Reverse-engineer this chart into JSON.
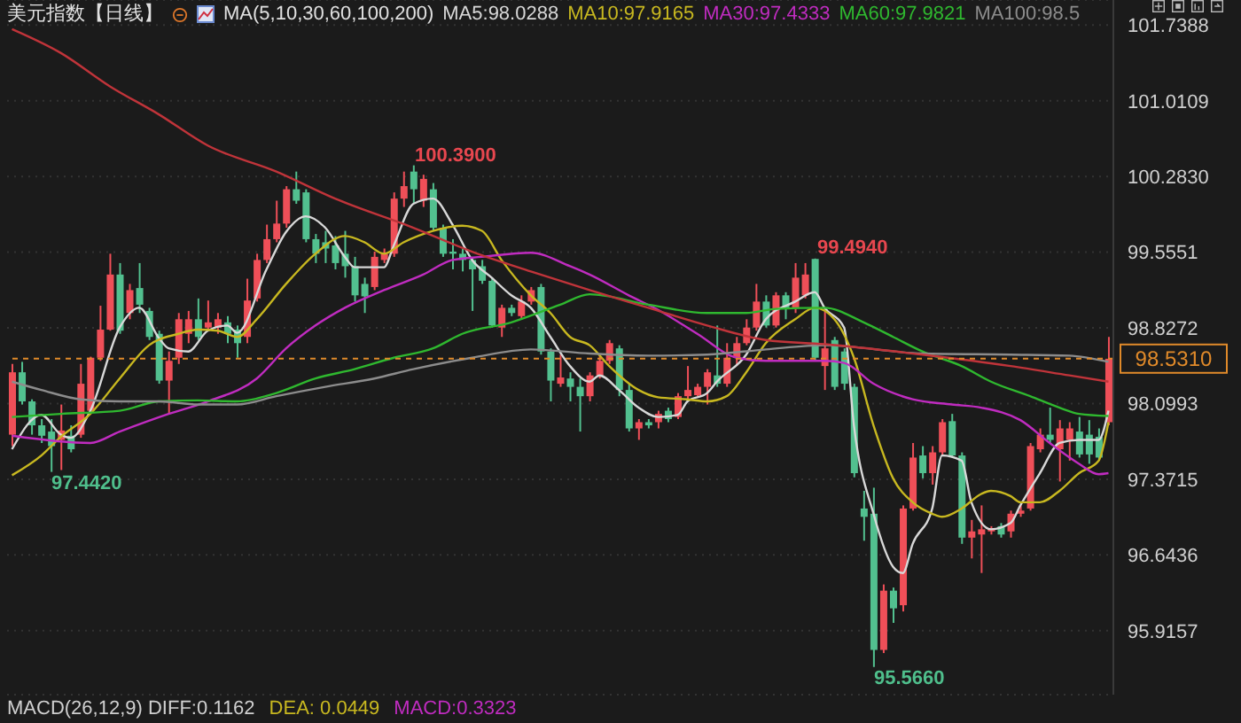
{
  "chart_data": {
    "type": "candlestick",
    "title": "美元指数【日线】",
    "legend_title": "MA(5,10,30,60,100,200)",
    "legend": "top",
    "grid": "y",
    "categories": [
      null,
      null,
      null,
      null,
      null,
      null,
      null,
      null,
      null,
      null,
      null,
      null,
      null,
      null,
      null,
      null,
      null,
      null,
      null,
      null,
      null,
      null,
      null,
      null,
      null,
      null,
      null,
      null,
      null,
      null,
      null,
      null,
      null,
      null,
      null,
      null,
      null,
      null,
      null,
      null,
      null,
      null,
      null,
      null,
      null,
      null,
      null,
      null,
      null,
      null,
      null,
      null,
      null,
      null,
      null,
      null,
      null,
      null,
      null,
      null,
      null,
      null,
      null,
      null,
      null,
      null,
      null,
      null,
      null,
      null,
      null,
      null,
      null,
      null,
      null,
      null,
      null,
      null,
      null,
      null,
      null,
      null,
      null,
      null,
      null,
      null,
      null,
      null,
      null,
      null,
      null,
      null,
      null,
      null,
      null,
      null,
      null,
      null,
      null,
      null,
      null,
      null,
      null,
      null,
      null,
      null,
      null,
      null,
      null,
      null,
      null,
      null,
      null
    ],
    "ohlc": [
      [
        97.8,
        98.48,
        97.69,
        98.4
      ],
      [
        98.4,
        98.5,
        98.09,
        98.12
      ],
      [
        98.12,
        98.14,
        97.8,
        97.89
      ],
      [
        97.89,
        97.95,
        97.72,
        97.79
      ],
      [
        97.83,
        97.95,
        97.442,
        97.69
      ],
      [
        97.75,
        98.09,
        97.46,
        97.84
      ],
      [
        97.79,
        97.89,
        97.63,
        97.66
      ],
      [
        97.8,
        98.48,
        97.77,
        98.29
      ],
      [
        98.03,
        98.55,
        98.0,
        98.54
      ],
      [
        98.54,
        99.04,
        98.51,
        98.81
      ],
      [
        98.81,
        99.54,
        98.8,
        99.34
      ],
      [
        99.34,
        99.45,
        98.77,
        98.8
      ],
      [
        98.97,
        99.25,
        98.91,
        99.19
      ],
      [
        99.21,
        99.45,
        98.97,
        99.05
      ],
      [
        98.99,
        99.02,
        98.71,
        98.74
      ],
      [
        98.77,
        98.8,
        98.29,
        98.32
      ],
      [
        98.32,
        98.6,
        98.0,
        98.51
      ],
      [
        98.54,
        98.97,
        98.48,
        98.91
      ],
      [
        98.77,
        98.99,
        98.68,
        98.91
      ],
      [
        98.91,
        99.11,
        98.71,
        98.74
      ],
      [
        98.83,
        99.09,
        98.8,
        98.88
      ],
      [
        98.83,
        98.97,
        98.77,
        98.91
      ],
      [
        98.88,
        98.94,
        98.68,
        98.77
      ],
      [
        98.81,
        98.85,
        98.54,
        98.68
      ],
      [
        98.74,
        99.3,
        98.68,
        99.09
      ],
      [
        99.11,
        99.54,
        99.08,
        99.48
      ],
      [
        99.48,
        99.82,
        99.45,
        99.68
      ],
      [
        99.68,
        100.05,
        99.65,
        99.83
      ],
      [
        99.83,
        100.19,
        99.79,
        100.16
      ],
      [
        100.16,
        100.33,
        100.02,
        100.05
      ],
      [
        100.13,
        100.16,
        99.65,
        99.68
      ],
      [
        99.68,
        99.73,
        99.45,
        99.54
      ],
      [
        99.65,
        99.76,
        99.45,
        99.59
      ],
      [
        99.62,
        99.71,
        99.39,
        99.45
      ],
      [
        99.54,
        99.76,
        99.31,
        99.42
      ],
      [
        99.42,
        99.51,
        99.08,
        99.14
      ],
      [
        99.25,
        99.31,
        98.97,
        99.13
      ],
      [
        99.22,
        99.56,
        99.19,
        99.51
      ],
      [
        99.48,
        99.59,
        99.45,
        99.54
      ],
      [
        99.54,
        100.13,
        99.51,
        100.07
      ],
      [
        100.07,
        100.33,
        99.99,
        100.19
      ],
      [
        100.33,
        100.39,
        100.02,
        100.16
      ],
      [
        100.05,
        100.3,
        99.99,
        100.26
      ],
      [
        100.16,
        100.22,
        99.76,
        99.79
      ],
      [
        99.79,
        99.82,
        99.51,
        99.54
      ],
      [
        99.56,
        99.68,
        99.39,
        99.54
      ],
      [
        99.54,
        99.59,
        99.37,
        99.48
      ],
      [
        99.48,
        99.51,
        98.99,
        99.39
      ],
      [
        99.42,
        99.48,
        99.25,
        99.28
      ],
      [
        99.28,
        99.31,
        98.83,
        98.85
      ],
      [
        98.83,
        99.05,
        98.74,
        99.02
      ],
      [
        99.02,
        99.05,
        98.94,
        98.97
      ],
      [
        98.94,
        99.14,
        98.91,
        99.08
      ],
      [
        99.08,
        99.22,
        99.05,
        99.19
      ],
      [
        99.22,
        99.25,
        98.57,
        98.6
      ],
      [
        98.6,
        98.63,
        98.12,
        98.32
      ],
      [
        98.29,
        98.57,
        98.26,
        98.35
      ],
      [
        98.34,
        98.4,
        98.12,
        98.26
      ],
      [
        98.26,
        98.34,
        97.83,
        98.17
      ],
      [
        98.17,
        98.4,
        98.12,
        98.37
      ],
      [
        98.37,
        98.57,
        98.34,
        98.51
      ],
      [
        98.51,
        98.71,
        98.48,
        98.68
      ],
      [
        98.63,
        98.66,
        98.17,
        98.23
      ],
      [
        98.23,
        98.29,
        97.83,
        97.86
      ],
      [
        97.86,
        97.95,
        97.75,
        97.92
      ],
      [
        97.92,
        97.95,
        97.86,
        97.89
      ],
      [
        97.92,
        98.03,
        97.86,
        98.0
      ],
      [
        98.03,
        98.06,
        97.92,
        97.95
      ],
      [
        97.97,
        98.2,
        97.95,
        98.17
      ],
      [
        98.17,
        98.46,
        98.14,
        98.23
      ],
      [
        98.18,
        98.29,
        98.17,
        98.26
      ],
      [
        98.26,
        98.43,
        98.09,
        98.4
      ],
      [
        98.37,
        98.85,
        98.26,
        98.29
      ],
      [
        98.29,
        98.68,
        98.26,
        98.54
      ],
      [
        98.54,
        98.74,
        98.46,
        98.68
      ],
      [
        98.68,
        98.91,
        98.66,
        98.83
      ],
      [
        98.83,
        99.25,
        98.8,
        99.08
      ],
      [
        99.08,
        99.14,
        98.83,
        98.85
      ],
      [
        98.85,
        99.17,
        98.83,
        99.14
      ],
      [
        99.14,
        99.17,
        98.91,
        99.02
      ],
      [
        99.02,
        99.45,
        98.97,
        99.31
      ],
      [
        99.14,
        99.45,
        99.11,
        99.34
      ],
      [
        99.49,
        99.494,
        98.51,
        98.54
      ],
      [
        98.46,
        99.02,
        98.23,
        98.63
      ],
      [
        98.71,
        98.74,
        98.23,
        98.26
      ],
      [
        98.6,
        98.63,
        98.23,
        98.29
      ],
      [
        98.26,
        98.29,
        97.39,
        97.43
      ],
      [
        97.09,
        97.26,
        96.78,
        97.01
      ],
      [
        97.04,
        97.29,
        95.566,
        95.73
      ],
      [
        95.73,
        96.36,
        95.7,
        96.3
      ],
      [
        96.3,
        96.33,
        95.99,
        96.13
      ],
      [
        96.16,
        97.12,
        96.1,
        97.09
      ],
      [
        97.09,
        97.72,
        97.07,
        97.58
      ],
      [
        97.6,
        97.69,
        97.38,
        97.43
      ],
      [
        97.43,
        97.69,
        97.32,
        97.63
      ],
      [
        97.63,
        97.95,
        97.6,
        97.92
      ],
      [
        97.93,
        98.0,
        97.58,
        97.6
      ],
      [
        97.6,
        97.63,
        96.75,
        96.81
      ],
      [
        96.81,
        96.98,
        96.61,
        96.87
      ],
      [
        96.84,
        97.12,
        96.47,
        96.89
      ],
      [
        96.87,
        96.92,
        96.84,
        96.9
      ],
      [
        96.92,
        96.95,
        96.81,
        96.84
      ],
      [
        96.87,
        97.07,
        96.81,
        97.04
      ],
      [
        97.04,
        97.12,
        97.01,
        97.07
      ],
      [
        97.09,
        97.72,
        97.07,
        97.69
      ],
      [
        97.66,
        97.86,
        97.63,
        97.8
      ],
      [
        97.8,
        98.06,
        97.72,
        97.75
      ],
      [
        97.66,
        97.94,
        97.35,
        97.86
      ],
      [
        97.75,
        97.92,
        97.55,
        97.86
      ],
      [
        97.83,
        97.97,
        97.58,
        97.61
      ],
      [
        97.8,
        97.94,
        97.52,
        97.61
      ],
      [
        97.78,
        97.86,
        97.55,
        97.58
      ],
      [
        97.92,
        98.74,
        97.89,
        98.53
      ]
    ],
    "colors": [
      "#ef4f58",
      "#52c08f",
      "#52c08f",
      "#52c08f",
      "#52c08f",
      "#ef4f58",
      "#52c08f",
      "#ef4f58",
      "#ef4f58",
      "#ef4f58",
      "#ef4f58",
      "#52c08f",
      "#ef4f58",
      "#52c08f",
      "#52c08f",
      "#52c08f",
      "#ef4f58",
      "#ef4f58",
      "#ef4f58",
      "#52c08f",
      "#ef4f58",
      "#ef4f58",
      "#52c08f",
      "#52c08f",
      "#ef4f58",
      "#ef4f58",
      "#ef4f58",
      "#ef4f58",
      "#ef4f58",
      "#52c08f",
      "#52c08f",
      "#52c08f",
      "#52c08f",
      "#52c08f",
      "#52c08f",
      "#52c08f",
      "#52c08f",
      "#ef4f58",
      "#ef4f58",
      "#ef4f58",
      "#ef4f58",
      "#52c08f",
      "#ef4f58",
      "#52c08f",
      "#52c08f",
      "#52c08f",
      "#52c08f",
      "#52c08f",
      "#52c08f",
      "#52c08f",
      "#ef4f58",
      "#52c08f",
      "#ef4f58",
      "#ef4f58",
      "#52c08f",
      "#52c08f",
      "#ef4f58",
      "#52c08f",
      "#52c08f",
      "#ef4f58",
      "#ef4f58",
      "#ef4f58",
      "#52c08f",
      "#52c08f",
      "#ef4f58",
      "#52c08f",
      "#ef4f58",
      "#52c08f",
      "#ef4f58",
      "#ef4f58",
      "#ef4f58",
      "#ef4f58",
      "#52c08f",
      "#ef4f58",
      "#ef4f58",
      "#ef4f58",
      "#ef4f58",
      "#52c08f",
      "#ef4f58",
      "#52c08f",
      "#ef4f58",
      "#ef4f58",
      "#52c08f",
      "#ef4f58",
      "#52c08f",
      "#52c08f",
      "#52c08f",
      "#52c08f",
      "#52c08f",
      "#ef4f58",
      "#52c08f",
      "#ef4f58",
      "#ef4f58",
      "#52c08f",
      "#ef4f58",
      "#ef4f58",
      "#52c08f",
      "#52c08f",
      "#ef4f58",
      "#ef4f58",
      "#ef4f58",
      "#52c08f",
      "#ef4f58",
      "#ef4f58",
      "#ef4f58",
      "#ef4f58",
      "#52c08f",
      "#ef4f58",
      "#ef4f58",
      "#52c08f",
      "#52c08f",
      "#52c08f",
      "#ef4f58"
    ],
    "series": [
      {
        "name": "MA5:98.0288",
        "type": "line",
        "color": "#d8d8d8",
        "values": [
          97.66,
          null,
          null,
          97.99,
          null,
          97.8,
          97.77,
          null,
          98.03,
          null,
          null,
          98.83,
          null,
          99.02,
          null,
          98.73,
          98.63,
          null,
          98.6,
          null,
          98.8,
          null,
          98.85,
          98.78,
          null,
          null,
          99.39,
          null,
          99.75,
          null,
          99.9,
          null,
          99.79,
          null,
          99.51,
          99.41,
          null,
          null,
          99.41,
          99.62,
          null,
          100.02,
          null,
          100.07,
          null,
          99.82,
          null,
          99.48,
          null,
          99.31,
          null,
          99.14,
          null,
          99.02,
          null,
          98.74,
          null,
          98.46,
          null,
          98.31,
          98.37,
          null,
          98.23,
          null,
          98.06,
          null,
          97.97,
          null,
          97.99,
          98.12,
          null,
          98.2,
          98.31,
          null,
          null,
          98.57,
          null,
          98.91,
          null,
          null,
          99.08,
          null,
          99.17,
          99.02,
          null,
          98.83,
          97.89,
          null,
          97.04,
          null,
          96.53,
          96.47,
          96.75,
          null,
          97.09,
          97.6,
          null,
          97.55,
          97.15,
          null,
          96.89,
          null,
          96.95,
          97.12,
          null,
          97.43,
          null,
          97.72,
          null,
          97.75,
          null,
          97.75,
          98.03
        ]
      },
      {
        "name": "MA10:97.9165",
        "type": "line",
        "color": "#c8b820",
        "values": [
          97.41,
          null,
          null,
          97.6,
          null,
          97.78,
          null,
          null,
          98.0,
          null,
          null,
          98.34,
          null,
          null,
          98.66,
          null,
          null,
          98.77,
          null,
          98.81,
          null,
          98.8,
          null,
          98.74,
          null,
          98.91,
          null,
          null,
          99.25,
          null,
          null,
          99.54,
          null,
          null,
          99.71,
          null,
          99.65,
          null,
          99.54,
          null,
          99.65,
          null,
          null,
          99.76,
          null,
          null,
          99.81,
          null,
          99.76,
          null,
          99.48,
          null,
          null,
          99.14,
          null,
          98.97,
          null,
          98.74,
          null,
          98.66,
          null,
          98.46,
          null,
          null,
          98.23,
          null,
          98.16,
          null,
          null,
          98.14,
          null,
          98.12,
          null,
          98.17,
          null,
          98.4,
          null,
          98.68,
          null,
          null,
          98.91,
          null,
          99.02,
          null,
          98.91,
          null,
          98.54,
          null,
          97.89,
          null,
          97.38,
          null,
          97.15,
          null,
          97.04,
          97.01,
          null,
          97.09,
          null,
          97.23,
          97.26,
          null,
          97.21,
          97.15,
          null,
          97.15,
          null,
          97.26,
          null,
          97.43,
          null,
          97.55,
          97.92
        ]
      },
      {
        "name": "MA30:97.4333",
        "type": "line",
        "color": "#c02cc0",
        "values": [
          97.79,
          null,
          null,
          null,
          null,
          null,
          null,
          null,
          97.72,
          null,
          null,
          97.83,
          null,
          null,
          null,
          null,
          98.0,
          null,
          null,
          null,
          98.12,
          null,
          null,
          null,
          null,
          98.34,
          null,
          null,
          98.63,
          null,
          null,
          98.85,
          null,
          null,
          99.02,
          null,
          null,
          null,
          99.19,
          null,
          null,
          null,
          99.34,
          null,
          null,
          99.48,
          null,
          null,
          99.51,
          null,
          null,
          null,
          null,
          99.55,
          null,
          null,
          null,
          99.42,
          null,
          99.34,
          null,
          null,
          null,
          99.14,
          null,
          null,
          99.0,
          null,
          null,
          null,
          98.77,
          null,
          null,
          null,
          98.54,
          null,
          null,
          98.51,
          null,
          null,
          null,
          null,
          null,
          98.51,
          null,
          98.49,
          null,
          null,
          98.29,
          null,
          null,
          null,
          98.14,
          null,
          null,
          null,
          98.09,
          null,
          null,
          98.06,
          null,
          null,
          null,
          97.94,
          null,
          null,
          97.72,
          null,
          null,
          97.52,
          null,
          97.42,
          97.43
        ]
      },
      {
        "name": "MA60:97.9821",
        "type": "line",
        "color": "#2fb82f",
        "values": [
          97.97,
          null,
          null,
          null,
          null,
          98.0,
          null,
          null,
          null,
          null,
          null,
          98.03,
          null,
          null,
          null,
          98.12,
          null,
          null,
          null,
          98.13,
          null,
          null,
          null,
          98.12,
          null,
          null,
          null,
          98.2,
          null,
          null,
          null,
          98.34,
          null,
          null,
          null,
          98.43,
          null,
          null,
          null,
          98.54,
          null,
          null,
          null,
          98.63,
          null,
          null,
          98.77,
          null,
          null,
          null,
          null,
          98.88,
          null,
          null,
          null,
          null,
          99.05,
          null,
          null,
          99.15,
          null,
          null,
          null,
          null,
          null,
          99.05,
          null,
          null,
          null,
          null,
          null,
          98.97,
          null,
          null,
          null,
          98.97,
          null,
          null,
          99.01,
          null,
          null,
          null,
          null,
          99.02,
          null,
          null,
          null,
          98.88,
          null,
          null,
          98.74,
          null,
          null,
          98.6,
          null,
          null,
          null,
          98.46,
          null,
          null,
          98.31,
          null,
          null,
          null,
          98.17,
          null,
          null,
          98.06,
          null,
          98.0,
          null,
          null,
          97.98
        ]
      },
      {
        "name": "MA100:98.5",
        "type": "line",
        "color": "#8c8c8c",
        "values": [
          98.31,
          null,
          null,
          98.23,
          null,
          null,
          null,
          98.14,
          null,
          null,
          null,
          98.12,
          null,
          null,
          null,
          98.12,
          null,
          null,
          null,
          98.09,
          null,
          null,
          null,
          98.09,
          null,
          null,
          null,
          98.17,
          null,
          null,
          null,
          null,
          98.26,
          null,
          null,
          null,
          null,
          98.34,
          null,
          null,
          null,
          98.43,
          null,
          null,
          null,
          null,
          null,
          98.54,
          null,
          null,
          null,
          null,
          null,
          98.62,
          null,
          null,
          null,
          null,
          null,
          98.58,
          null,
          null,
          null,
          null,
          null,
          98.56,
          null,
          null,
          null,
          null,
          null,
          98.57,
          null,
          null,
          null,
          null,
          null,
          98.62,
          null,
          null,
          null,
          null,
          null,
          98.66,
          null,
          null,
          null,
          null,
          null,
          null,
          null,
          null,
          null,
          98.58,
          null,
          null,
          null,
          null,
          null,
          null,
          null,
          null,
          98.57,
          null,
          null,
          null,
          null,
          null,
          98.56,
          null,
          null,
          null,
          98.5
        ]
      },
      {
        "type": "line",
        "color": "#c0343a",
        "values": [
          101.7,
          null,
          null,
          null,
          null,
          101.47,
          null,
          null,
          null,
          null,
          101.15,
          null,
          null,
          null,
          null,
          100.88,
          null,
          null,
          null,
          null,
          100.58,
          null,
          null,
          null,
          null,
          null,
          null,
          100.33,
          null,
          null,
          null,
          null,
          null,
          100.07,
          null,
          null,
          null,
          null,
          null,
          null,
          null,
          99.79,
          null,
          null,
          null,
          null,
          null,
          99.56,
          null,
          null,
          null,
          null,
          null,
          99.37,
          null,
          null,
          null,
          null,
          null,
          99.19,
          null,
          null,
          null,
          null,
          null,
          99.02,
          null,
          null,
          null,
          null,
          null,
          98.85,
          null,
          null,
          null,
          null,
          null,
          98.71,
          null,
          null,
          null,
          null,
          null,
          98.67,
          null,
          null,
          null,
          null,
          null,
          null,
          null,
          null,
          null,
          98.57,
          null,
          null,
          null,
          null,
          null,
          null,
          null,
          null,
          98.46,
          null,
          null,
          null,
          null,
          null,
          98.37,
          null,
          null,
          null,
          98.31
        ]
      }
    ],
    "ylim": [
      95.3,
      101.98
    ],
    "yticks": [
      101.7388,
      101.0109,
      {
        "value": 100.283,
        "label": "100.2830"
      },
      99.5551,
      98.8272,
      98.0993,
      97.3715,
      96.6436,
      95.9157
    ],
    "ref_lines": [
      {
        "axis": "y",
        "value": 98.531,
        "label": "98.5310",
        "color": "#e08a2a",
        "line_style": "dashed"
      }
    ],
    "annotations": [
      "100.3900",
      "99.4940",
      "97.4420",
      "95.5660",
      "MACD(26,12,9) DIFF:0.1162",
      "DEA: 0.0449",
      "MACD:0.3323"
    ]
  }
}
